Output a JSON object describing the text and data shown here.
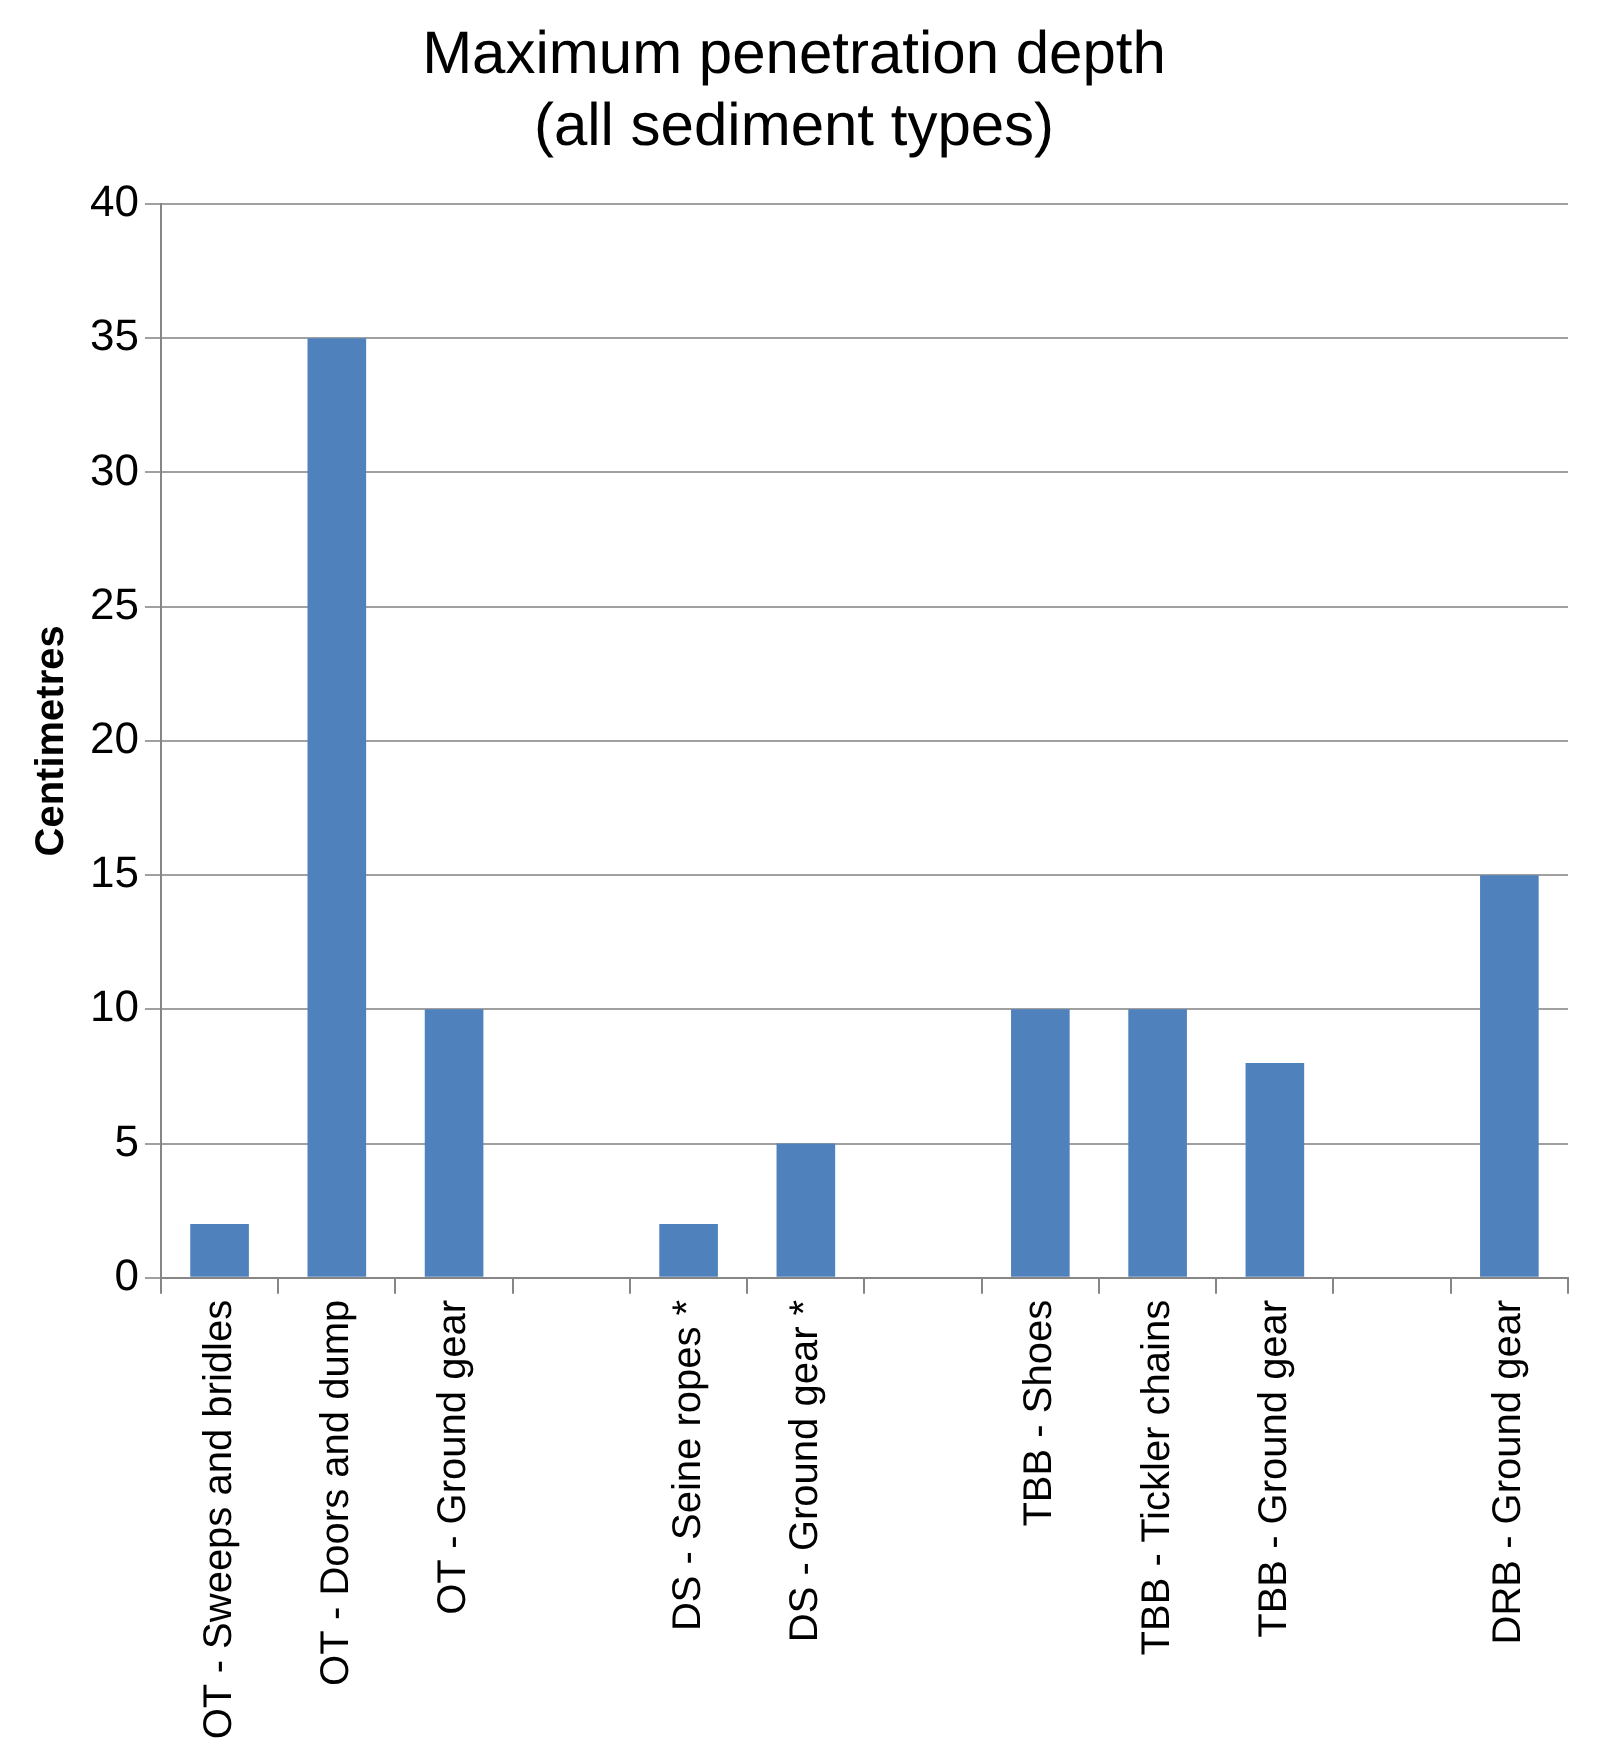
{
  "chart_data": {
    "type": "bar",
    "title": "Maximum penetration depth\n(all sediment types)",
    "ylabel": "Centimetres",
    "categories": [
      "OT - Sweeps and bridles",
      "OT - Doors and dump",
      "OT - Ground gear",
      null,
      "DS - Seine ropes *",
      "DS - Ground gear *",
      null,
      "TBB - Shoes",
      "TBB - Tickler chains",
      "TBB - Ground gear",
      null,
      "DRB - Ground gear"
    ],
    "values": [
      2,
      35,
      10,
      null,
      2,
      5,
      null,
      10,
      10,
      8,
      null,
      15
    ],
    "color": "#4f81bd",
    "ylim": [
      0,
      40
    ],
    "yticks": [
      0,
      5,
      10,
      15,
      20,
      25,
      30,
      35,
      40
    ],
    "grid": "y",
    "legend": false
  }
}
